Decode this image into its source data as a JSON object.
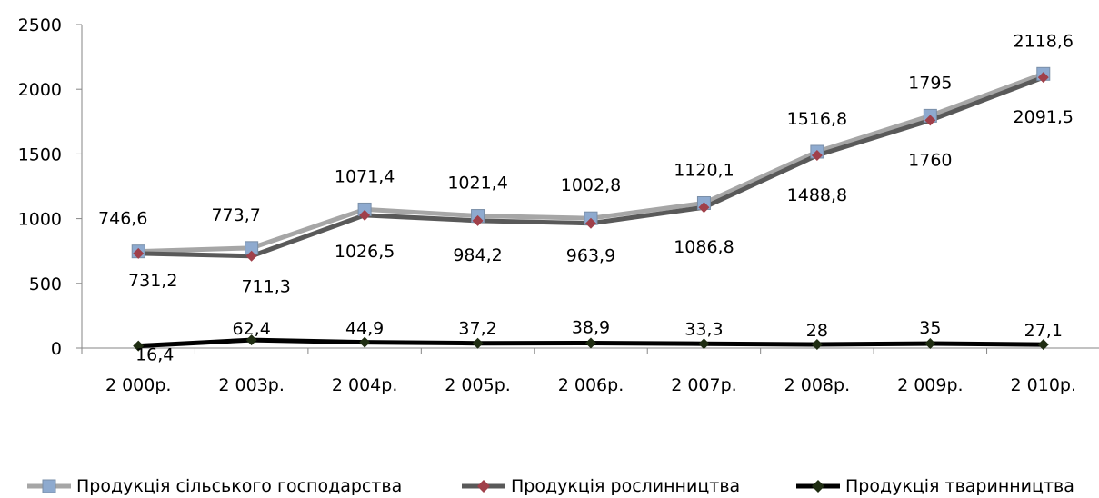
{
  "chart_data": {
    "type": "line",
    "categories": [
      "2 000р.",
      "2 003р.",
      "2 004р.",
      "2 005р.",
      "2 006р.",
      "2 007р.",
      "2 008р.",
      "2 009р.",
      "2 010р."
    ],
    "ylim": [
      0,
      2500
    ],
    "yticks": [
      0,
      500,
      1000,
      1500,
      2000,
      2500
    ],
    "grid": false,
    "legend_position": "bottom",
    "series": [
      {
        "name": "Продукція сільського господарства",
        "values": [
          746.6,
          773.7,
          1071.4,
          1021.4,
          1002.8,
          1120.1,
          1516.8,
          1795,
          2118.6
        ],
        "labels": [
          "746,6",
          "773,7",
          "1071,4",
          "1021,4",
          "1002,8",
          "1120,1",
          "1516,8",
          "1795",
          "2118,6"
        ],
        "color": "#a6a6a6",
        "marker_color": "#8eaacf",
        "marker": "square"
      },
      {
        "name": "Продукція  рослинництва",
        "values": [
          731.2,
          711.3,
          1026.5,
          984.2,
          963.9,
          1086.8,
          1488.8,
          1760,
          2091.5
        ],
        "labels": [
          "731,2",
          "711,3",
          "1026,5",
          "984,2",
          "963,9",
          "1086,8",
          "1488,8",
          "1760",
          "2091,5"
        ],
        "color": "#595959",
        "marker_color": "#a0404a",
        "marker": "diamond"
      },
      {
        "name": "Продукція тваринництва",
        "values": [
          16.4,
          62.4,
          44.9,
          37.2,
          38.9,
          33.3,
          28,
          35,
          27.1
        ],
        "labels": [
          "16,4",
          "62,4",
          "44,9",
          "37,2",
          "38,9",
          "33,3",
          "28",
          "35",
          "27,1"
        ],
        "color": "#000000",
        "marker_color": "#1f2d12",
        "marker": "diamond"
      }
    ]
  }
}
